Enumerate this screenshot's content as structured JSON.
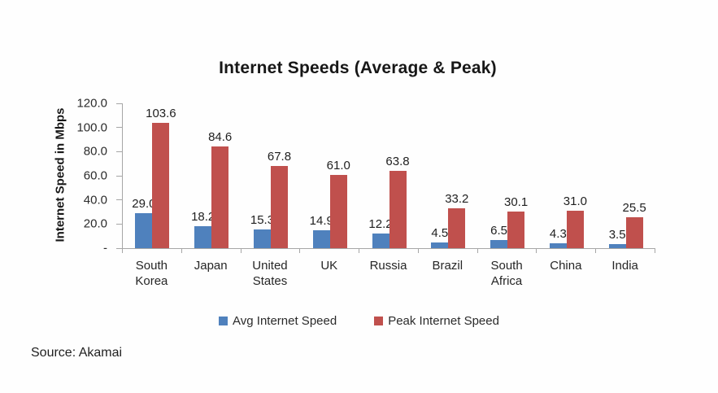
{
  "title": "Internet Speeds (Average & Peak)",
  "source": "Source: Akamai",
  "colors": {
    "avg_bar": "#4F81BD",
    "peak_bar": "#C0504D",
    "axis_line": "#A6A6A6"
  },
  "chart_data": {
    "type": "bar",
    "title": "Internet Speeds (Average & Peak)",
    "xlabel": "",
    "ylabel": "Internet Speed in Mbps",
    "ylim": [
      0,
      120
    ],
    "ytick_step": 20,
    "ytick_labels": [
      "-",
      "20.0",
      "40.0",
      "60.0",
      "80.0",
      "100.0",
      "120.0"
    ],
    "grid": false,
    "data_labels": true,
    "legend_position": "bottom",
    "categories": [
      "South Korea",
      "Japan",
      "United States",
      "UK",
      "Russia",
      "Brazil",
      "South Africa",
      "China",
      "India"
    ],
    "series": [
      {
        "name": "Avg Internet Speed",
        "color": "#4F81BD",
        "values": [
          29.0,
          18.2,
          15.3,
          14.9,
          12.2,
          4.5,
          6.5,
          4.3,
          3.5
        ]
      },
      {
        "name": "Peak Internet Speed",
        "color": "#C0504D",
        "values": [
          103.6,
          84.6,
          67.8,
          61.0,
          63.8,
          33.2,
          30.1,
          31.0,
          25.5
        ]
      }
    ]
  }
}
